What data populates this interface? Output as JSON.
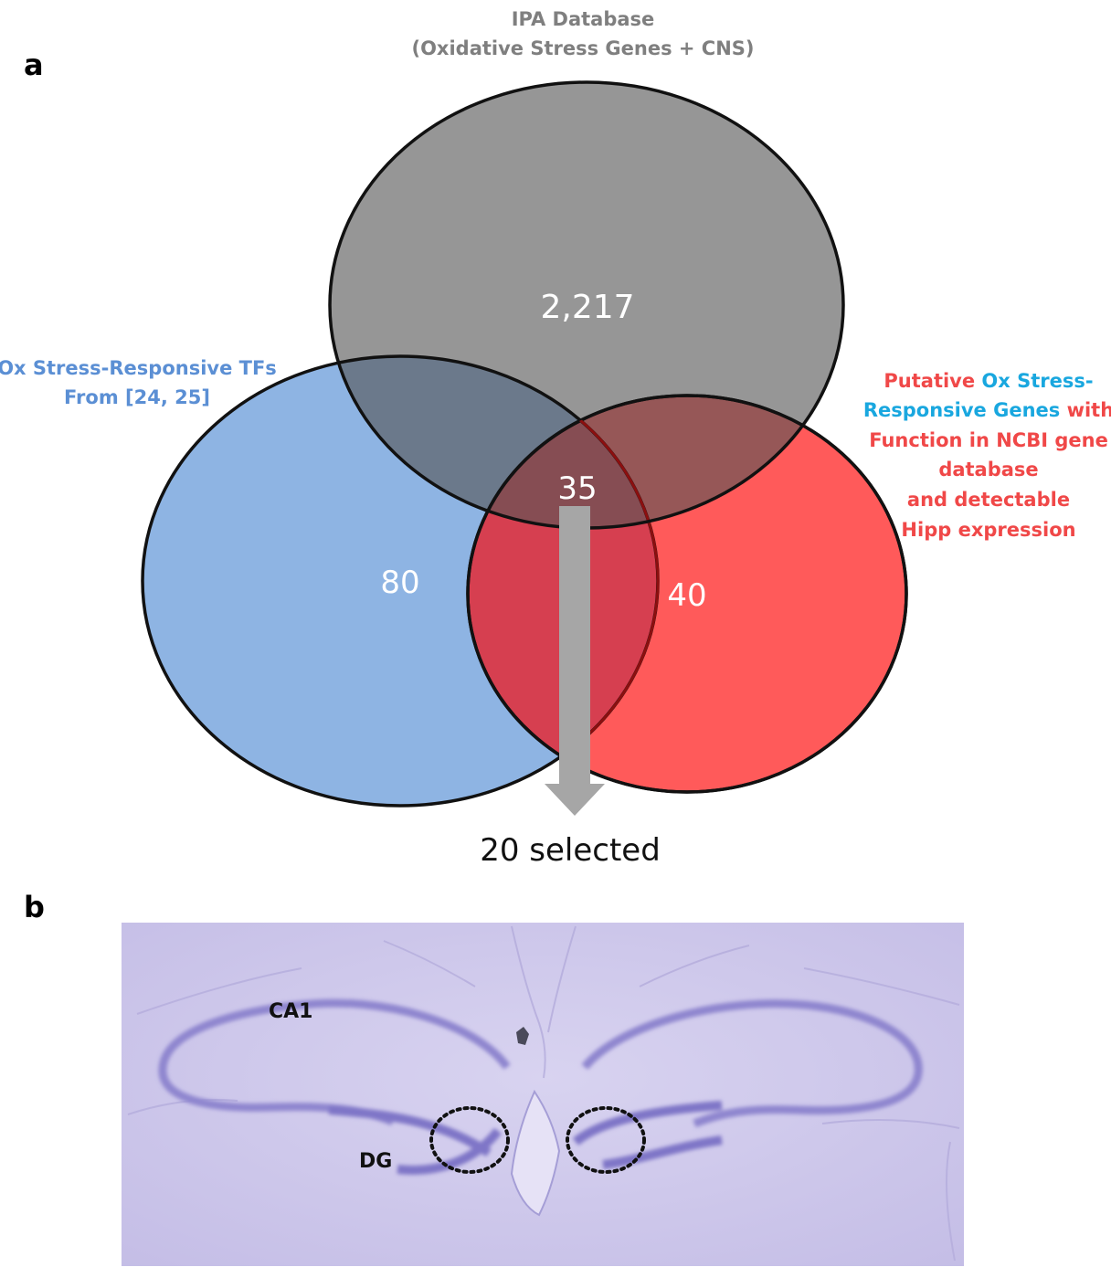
{
  "panel_a": {
    "letter": "a",
    "top_title_line1": "IPA Database",
    "top_title_line2": "(Oxidative Stress Genes + CNS)",
    "left_title_line1": "Ox Stress-Responsive TFs",
    "left_title_line2": "From [24, 25]",
    "right_title": {
      "l1a": "Putative ",
      "l1b": "Ox Stress-",
      "l2a": "Responsive Genes",
      "l2b": " with",
      "l3": "Function in NCBI gene",
      "l4": "database",
      "l5": "and detectable",
      "l6": "Hipp expression"
    },
    "count_ipa": "2,217",
    "count_tfs": "80",
    "count_putative": "40",
    "count_center": "35",
    "selected_label": "20 selected",
    "colors": {
      "ipa": "#8a8a8a",
      "tfs": "#8eb4e3",
      "putative": "#ff5a5a",
      "overlap_tf_put": "#d63f50",
      "arrow": "#a6a6a6",
      "left_title": "#5b8fd4",
      "right_red": "#f04848",
      "right_blue": "#19a7df",
      "top_title": "#7f7f7f"
    }
  },
  "panel_b": {
    "letter": "b",
    "label_ca1": "CA1",
    "label_dg": "DG",
    "tissue_color": "#cfc9ec",
    "stain_color": "#8f86cf"
  }
}
